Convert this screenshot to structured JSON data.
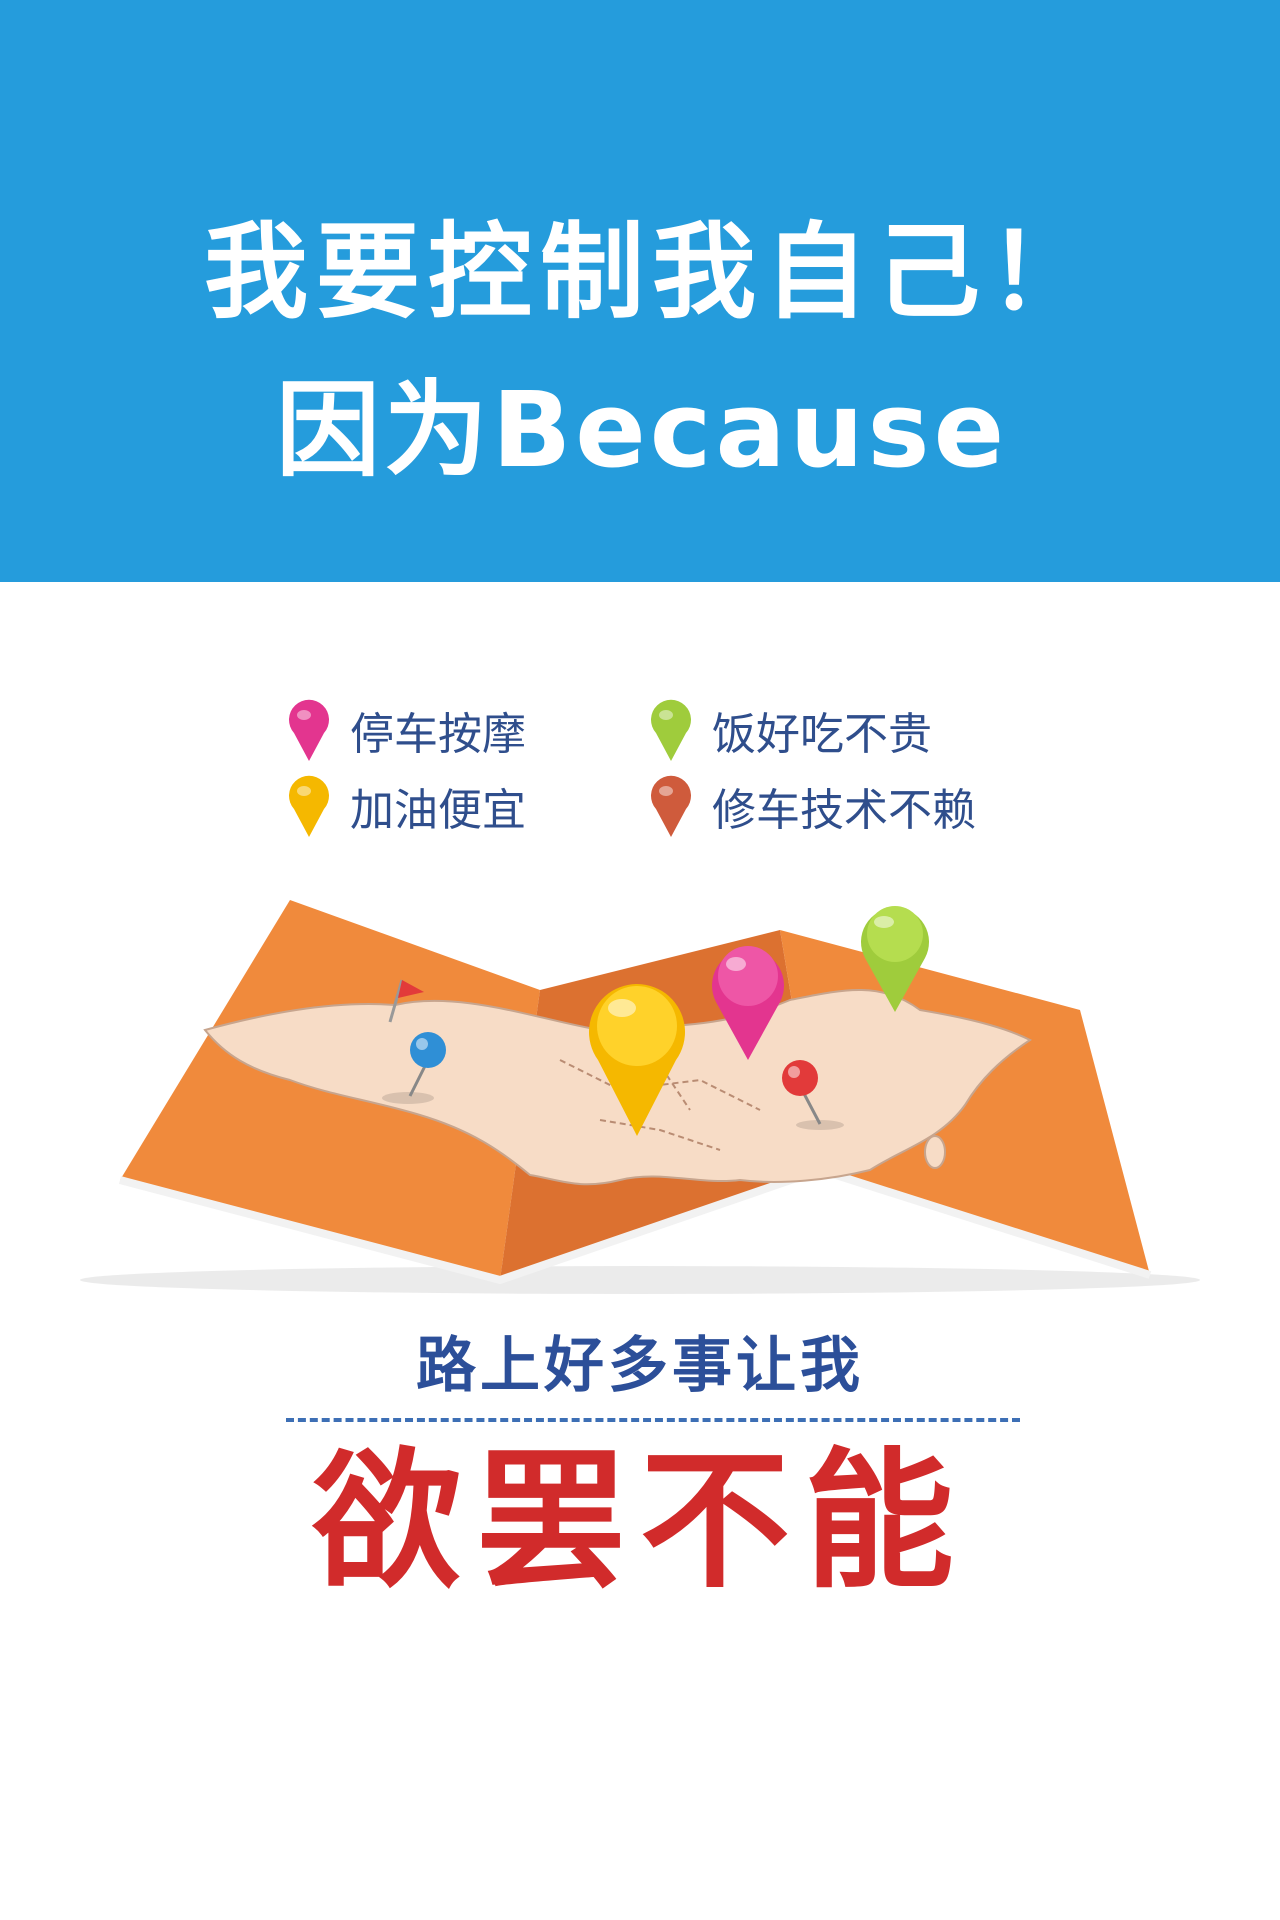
{
  "header": {
    "line1": "我要控制我自己！",
    "line2": "因为Because"
  },
  "legend": [
    {
      "label": "停车按摩",
      "color": "#e3358f"
    },
    {
      "label": "饭好吃不贵",
      "color": "#9fcc3c"
    },
    {
      "label": "加油便宜",
      "color": "#f5b800"
    },
    {
      "label": "修车技术不赖",
      "color": "#cf5b3c"
    }
  ],
  "map": {
    "fold_color": "#f08a3c",
    "land_color": "#f7dcc6",
    "pins": [
      {
        "name": "yellow-pin",
        "color": "#f5b800"
      },
      {
        "name": "pink-pin",
        "color": "#e3358f"
      },
      {
        "name": "green-pin",
        "color": "#9fcc3c"
      },
      {
        "name": "blue-pin",
        "color": "#2f8fd6"
      },
      {
        "name": "red-pin",
        "color": "#e23a3a"
      },
      {
        "name": "red-flag",
        "color": "#e23a3a"
      }
    ]
  },
  "footer": {
    "subtitle": "路上好多事让我",
    "slogan": "欲罢不能"
  }
}
